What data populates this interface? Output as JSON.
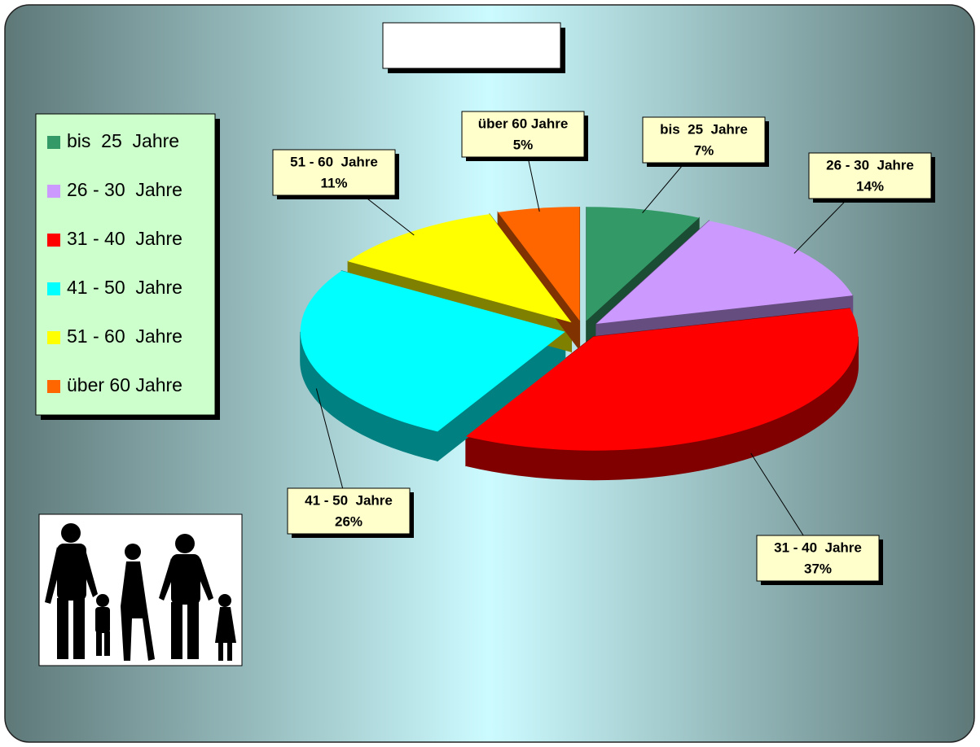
{
  "chart_data": {
    "type": "pie3d",
    "categories": [
      "bis  25  Jahre",
      "26 - 30  Jahre",
      "31 - 40  Jahre",
      "41 - 50  Jahre",
      "51 - 60  Jahre",
      "über 60 Jahre"
    ],
    "values": [
      7,
      14,
      37,
      26,
      11,
      5
    ],
    "value_labels": [
      "7%",
      "14%",
      "37%",
      "26%",
      "11%",
      "5%"
    ],
    "colors": [
      "#339966",
      "#cc99ff",
      "#ff0000",
      "#00ffff",
      "#ffff00",
      "#ff6600"
    ],
    "legend": "left"
  }
}
